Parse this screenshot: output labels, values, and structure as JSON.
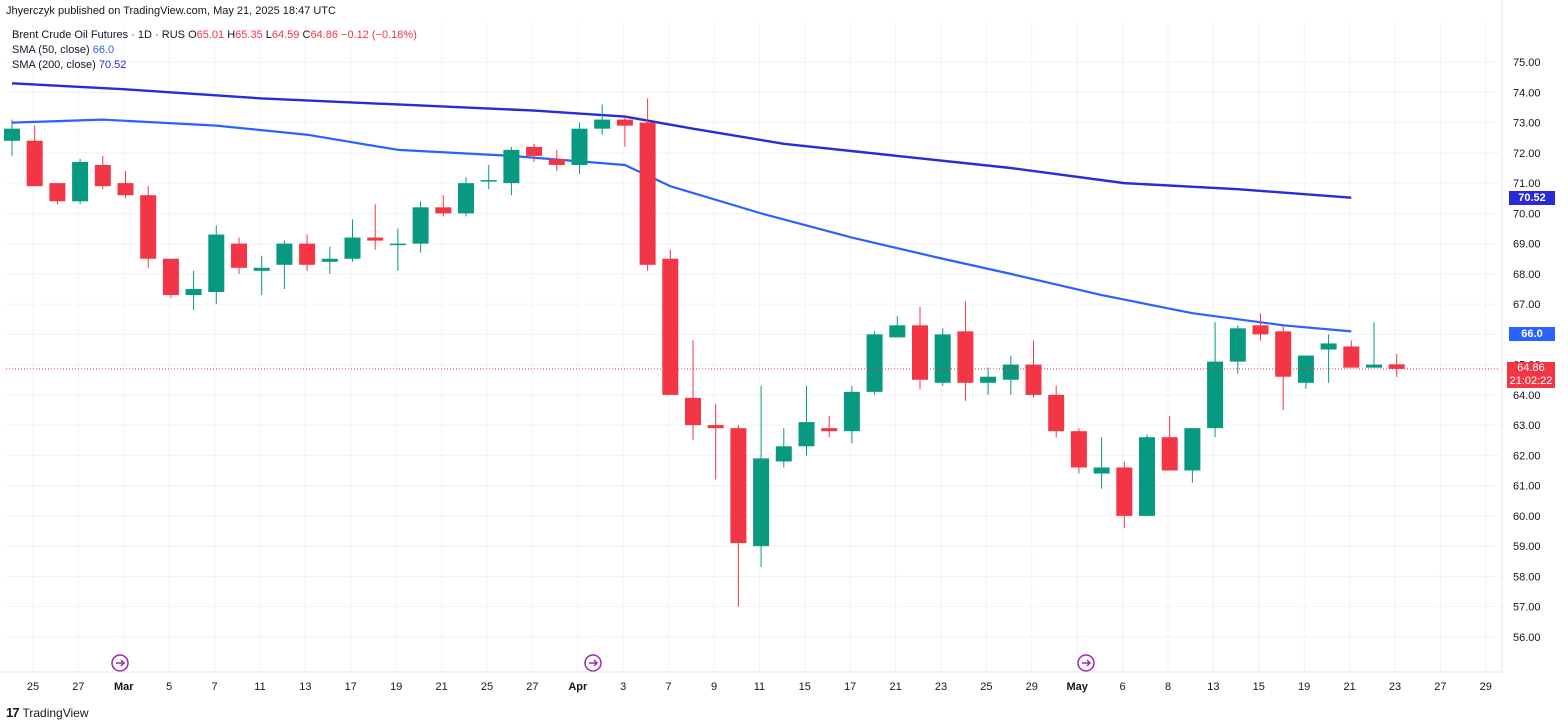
{
  "header": {
    "published": "Jhyerczyk published on TradingView.com, May 21, 2025 18:47 UTC"
  },
  "legend": {
    "symbol": "Brent Crude Oil Futures · 1D · RUS",
    "open_label": "O",
    "open": "65.01",
    "high_label": "H",
    "high": "65.35",
    "low_label": "L",
    "low": "64.59",
    "close_label": "C",
    "close": "64.86",
    "change": "−0.12 (−0.18%)",
    "sma50_label": "SMA (50, close)",
    "sma50_value": "66.0",
    "sma200_label": "SMA (200, close)",
    "sma200_value": "70.52"
  },
  "badges": {
    "sma200": "70.52",
    "sma50": "66.0",
    "last_price": "64.86",
    "countdown": "21:02:22"
  },
  "footer": {
    "brand": "TradingView",
    "logo_icon": "tradingview-logo-icon"
  },
  "colors": {
    "up": "#089981",
    "down": "#f23645",
    "sma50": "#2962ff",
    "sma200": "#2a2ad6"
  },
  "chart_data": {
    "type": "candlestick",
    "title": "Brent Crude Oil Futures · 1D · RUS",
    "ylim": [
      55.5,
      75.3
    ],
    "y_ticks": [
      "75.00",
      "74.00",
      "73.00",
      "72.00",
      "71.00",
      "70.00",
      "69.00",
      "68.00",
      "67.00",
      "66.00",
      "65.00",
      "64.00",
      "63.00",
      "62.00",
      "61.00",
      "60.00",
      "59.00",
      "58.00",
      "57.00",
      "56.00"
    ],
    "x_ticks": [
      "25",
      "27",
      "Mar",
      "5",
      "7",
      "11",
      "13",
      "17",
      "19",
      "21",
      "25",
      "27",
      "Apr",
      "3",
      "7",
      "9",
      "11",
      "15",
      "17",
      "21",
      "23",
      "25",
      "29",
      "May",
      "6",
      "8",
      "13",
      "15",
      "19",
      "21",
      "23",
      "27",
      "29"
    ],
    "grid": true,
    "candles": [
      {
        "date": "Feb 24",
        "o": 72.4,
        "h": 73.1,
        "l": 71.9,
        "c": 72.8
      },
      {
        "date": "Feb 25",
        "o": 72.4,
        "h": 72.9,
        "l": 70.9,
        "c": 70.9
      },
      {
        "date": "Feb 26",
        "o": 71.0,
        "h": 71.0,
        "l": 70.3,
        "c": 70.4
      },
      {
        "date": "Feb 27",
        "o": 70.4,
        "h": 71.8,
        "l": 70.3,
        "c": 71.7
      },
      {
        "date": "Feb 28",
        "o": 71.6,
        "h": 71.9,
        "l": 70.8,
        "c": 70.9
      },
      {
        "date": "Mar 3",
        "o": 71.0,
        "h": 71.4,
        "l": 70.5,
        "c": 70.6
      },
      {
        "date": "Mar 4",
        "o": 70.6,
        "h": 70.9,
        "l": 68.2,
        "c": 68.5
      },
      {
        "date": "Mar 5",
        "o": 68.5,
        "h": 68.5,
        "l": 67.2,
        "c": 67.3
      },
      {
        "date": "Mar 6",
        "o": 67.3,
        "h": 68.1,
        "l": 66.8,
        "c": 67.5
      },
      {
        "date": "Mar 7",
        "o": 67.4,
        "h": 69.6,
        "l": 67.0,
        "c": 69.3
      },
      {
        "date": "Mar 10",
        "o": 69.0,
        "h": 69.2,
        "l": 68.0,
        "c": 68.2
      },
      {
        "date": "Mar 11",
        "o": 68.1,
        "h": 68.6,
        "l": 67.3,
        "c": 68.2
      },
      {
        "date": "Mar 12",
        "o": 68.3,
        "h": 69.1,
        "l": 67.5,
        "c": 69.0
      },
      {
        "date": "Mar 13",
        "o": 69.0,
        "h": 69.3,
        "l": 68.1,
        "c": 68.3
      },
      {
        "date": "Mar 14",
        "o": 68.4,
        "h": 68.9,
        "l": 68.0,
        "c": 68.5
      },
      {
        "date": "Mar 17",
        "o": 68.5,
        "h": 69.8,
        "l": 68.4,
        "c": 69.2
      },
      {
        "date": "Mar 18",
        "o": 69.2,
        "h": 70.3,
        "l": 68.8,
        "c": 69.1
      },
      {
        "date": "Mar 19",
        "o": 69.0,
        "h": 69.5,
        "l": 68.1,
        "c": 69.0
      },
      {
        "date": "Mar 20",
        "o": 69.0,
        "h": 70.4,
        "l": 68.7,
        "c": 70.2
      },
      {
        "date": "Mar 21",
        "o": 70.2,
        "h": 70.6,
        "l": 69.9,
        "c": 70.0
      },
      {
        "date": "Mar 24",
        "o": 70.0,
        "h": 71.2,
        "l": 69.9,
        "c": 71.0
      },
      {
        "date": "Mar 25",
        "o": 71.1,
        "h": 71.6,
        "l": 70.8,
        "c": 71.1
      },
      {
        "date": "Mar 26",
        "o": 71.0,
        "h": 72.2,
        "l": 70.6,
        "c": 72.1
      },
      {
        "date": "Mar 27",
        "o": 72.2,
        "h": 72.3,
        "l": 71.7,
        "c": 71.9
      },
      {
        "date": "Mar 28",
        "o": 71.8,
        "h": 72.1,
        "l": 71.4,
        "c": 71.6
      },
      {
        "date": "Mar 31",
        "o": 71.6,
        "h": 73.0,
        "l": 71.3,
        "c": 72.8
      },
      {
        "date": "Apr 1",
        "o": 72.8,
        "h": 73.6,
        "l": 72.6,
        "c": 73.1
      },
      {
        "date": "Apr 2",
        "o": 73.1,
        "h": 73.2,
        "l": 72.2,
        "c": 72.9
      },
      {
        "date": "Apr 3",
        "o": 73.0,
        "h": 73.8,
        "l": 68.1,
        "c": 68.3
      },
      {
        "date": "Apr 4",
        "o": 68.5,
        "h": 68.8,
        "l": 64.0,
        "c": 64.0
      },
      {
        "date": "Apr 7",
        "o": 63.9,
        "h": 65.8,
        "l": 62.5,
        "c": 63.0
      },
      {
        "date": "Apr 8",
        "o": 63.0,
        "h": 63.7,
        "l": 61.2,
        "c": 62.9
      },
      {
        "date": "Apr 9",
        "o": 62.9,
        "h": 63.0,
        "l": 57.0,
        "c": 59.1
      },
      {
        "date": "Apr 10",
        "o": 59.0,
        "h": 64.3,
        "l": 58.3,
        "c": 61.9
      },
      {
        "date": "Apr 11",
        "o": 61.8,
        "h": 62.9,
        "l": 61.6,
        "c": 62.3
      },
      {
        "date": "Apr 14",
        "o": 62.3,
        "h": 64.3,
        "l": 62.0,
        "c": 63.1
      },
      {
        "date": "Apr 15",
        "o": 62.9,
        "h": 63.3,
        "l": 62.6,
        "c": 62.8
      },
      {
        "date": "Apr 16",
        "o": 62.8,
        "h": 64.3,
        "l": 62.4,
        "c": 64.1
      },
      {
        "date": "Apr 17",
        "o": 64.1,
        "h": 66.1,
        "l": 64.0,
        "c": 66.0
      },
      {
        "date": "Apr 21",
        "o": 65.9,
        "h": 66.6,
        "l": 65.9,
        "c": 66.3
      },
      {
        "date": "Apr 22",
        "o": 66.3,
        "h": 66.9,
        "l": 64.2,
        "c": 64.5
      },
      {
        "date": "Apr 23",
        "o": 64.4,
        "h": 66.2,
        "l": 64.3,
        "c": 66.0
      },
      {
        "date": "Apr 24",
        "o": 66.1,
        "h": 67.1,
        "l": 63.8,
        "c": 64.4
      },
      {
        "date": "Apr 25",
        "o": 64.4,
        "h": 64.9,
        "l": 64.0,
        "c": 64.6
      },
      {
        "date": "Apr 28",
        "o": 64.5,
        "h": 65.3,
        "l": 64.0,
        "c": 65.0
      },
      {
        "date": "Apr 29",
        "o": 65.0,
        "h": 65.8,
        "l": 63.9,
        "c": 64.0
      },
      {
        "date": "Apr 30",
        "o": 64.0,
        "h": 64.3,
        "l": 62.6,
        "c": 62.8
      },
      {
        "date": "May 1",
        "o": 62.8,
        "h": 62.9,
        "l": 61.4,
        "c": 61.6
      },
      {
        "date": "May 2",
        "o": 61.4,
        "h": 62.6,
        "l": 60.9,
        "c": 61.6
      },
      {
        "date": "May 5",
        "o": 61.6,
        "h": 61.8,
        "l": 59.6,
        "c": 60.0
      },
      {
        "date": "May 6",
        "o": 60.0,
        "h": 62.7,
        "l": 60.0,
        "c": 62.6
      },
      {
        "date": "May 7",
        "o": 62.6,
        "h": 63.3,
        "l": 61.5,
        "c": 61.5
      },
      {
        "date": "May 8",
        "o": 61.5,
        "h": 62.9,
        "l": 61.1,
        "c": 62.9
      },
      {
        "date": "May 9",
        "o": 62.9,
        "h": 66.4,
        "l": 62.6,
        "c": 65.1
      },
      {
        "date": "May 12",
        "o": 65.1,
        "h": 66.3,
        "l": 64.7,
        "c": 66.2
      },
      {
        "date": "May 13",
        "o": 66.3,
        "h": 66.7,
        "l": 65.8,
        "c": 66.0
      },
      {
        "date": "May 14",
        "o": 66.1,
        "h": 66.3,
        "l": 63.5,
        "c": 64.6
      },
      {
        "date": "May 15",
        "o": 64.4,
        "h": 65.3,
        "l": 64.2,
        "c": 65.3
      },
      {
        "date": "May 16",
        "o": 65.5,
        "h": 66.0,
        "l": 64.4,
        "c": 65.7
      },
      {
        "date": "May 19",
        "o": 65.6,
        "h": 65.8,
        "l": 64.9,
        "c": 64.9
      },
      {
        "date": "May 20",
        "o": 64.9,
        "h": 66.4,
        "l": 64.9,
        "c": 65.0
      },
      {
        "date": "May 21",
        "o": 65.01,
        "h": 65.35,
        "l": 64.59,
        "c": 64.86
      }
    ],
    "series": [
      {
        "name": "SMA (50, close)",
        "color": "#2962ff",
        "points": [
          [
            0,
            73.0
          ],
          [
            4,
            73.1
          ],
          [
            9,
            72.9
          ],
          [
            13,
            72.6
          ],
          [
            17,
            72.1
          ],
          [
            22,
            71.9
          ],
          [
            27,
            71.6
          ],
          [
            29,
            70.9
          ],
          [
            33,
            70.0
          ],
          [
            37,
            69.2
          ],
          [
            41,
            68.5
          ],
          [
            44,
            68.0
          ],
          [
            48,
            67.3
          ],
          [
            52,
            66.7
          ],
          [
            56,
            66.3
          ],
          [
            59,
            66.1
          ]
        ]
      },
      {
        "name": "SMA (200, close)",
        "color": "#2a2ad6",
        "points": [
          [
            0,
            74.3
          ],
          [
            5,
            74.1
          ],
          [
            11,
            73.8
          ],
          [
            17,
            73.6
          ],
          [
            23,
            73.4
          ],
          [
            27,
            73.2
          ],
          [
            30,
            72.8
          ],
          [
            34,
            72.3
          ],
          [
            39,
            71.9
          ],
          [
            44,
            71.5
          ],
          [
            49,
            71.0
          ],
          [
            54,
            70.8
          ],
          [
            59,
            70.52
          ]
        ]
      }
    ],
    "last_price": 64.86
  }
}
